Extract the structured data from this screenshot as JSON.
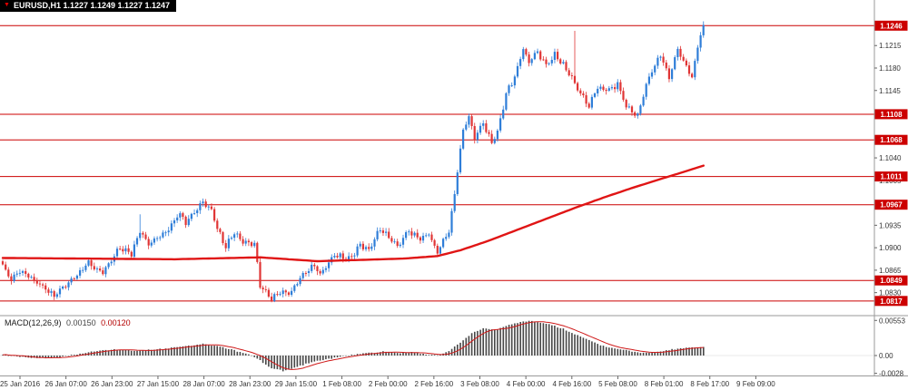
{
  "window": {
    "title": "EURUSD,H1 1.1227 1.1249 1.1227 1.1247"
  },
  "colors": {
    "bull": "#2f7ed8",
    "bear": "#e03535",
    "ma_line": "#e01515",
    "level_line": "#cc0000",
    "hist": "#474747",
    "signal": "#cf1a1a",
    "axis_text": "#333333",
    "panel_border": "#9a9a9a"
  },
  "chart_data": {
    "type": "candlestick",
    "symbol": "EURUSD",
    "timeframe": "H1",
    "last_quote": {
      "open": "1.1227",
      "high": "1.1249",
      "low": "1.1227",
      "close": "1.1247"
    },
    "candle_count": 246,
    "main_panel": {
      "price_min": 1.0797,
      "price_max": 1.1286,
      "axis_ticks": [
        "1.1215",
        "1.1180",
        "1.1145",
        "1.1040",
        "1.1005",
        "1.0935",
        "1.0900",
        "1.0865",
        "1.0830"
      ],
      "level_lines": [
        "1.1246",
        "1.1108",
        "1.1068",
        "1.1011",
        "1.0967",
        "1.0849",
        "1.0817"
      ],
      "price_path": [
        [
          0,
          1.0872
        ],
        [
          3,
          1.085
        ],
        [
          6,
          1.0865
        ],
        [
          12,
          1.0845
        ],
        [
          18,
          1.0825
        ],
        [
          22,
          1.0842
        ],
        [
          30,
          1.0876
        ],
        [
          35,
          1.086
        ],
        [
          41,
          1.09
        ],
        [
          45,
          1.089
        ],
        [
          48,
          1.0928
        ],
        [
          51,
          1.0905
        ],
        [
          57,
          1.0925
        ],
        [
          62,
          1.0955
        ],
        [
          64,
          1.094
        ],
        [
          70,
          1.0972
        ],
        [
          73,
          1.096
        ],
        [
          75,
          1.093
        ],
        [
          78,
          1.0902
        ],
        [
          81,
          1.0925
        ],
        [
          84,
          1.091
        ],
        [
          88,
          1.0905
        ],
        [
          90,
          1.0842
        ],
        [
          94,
          1.0818
        ],
        [
          97,
          1.0833
        ],
        [
          100,
          1.0828
        ],
        [
          105,
          1.0858
        ],
        [
          109,
          1.0872
        ],
        [
          111,
          1.086
        ],
        [
          116,
          1.0888
        ],
        [
          121,
          1.0882
        ],
        [
          125,
          1.0905
        ],
        [
          128,
          1.0896
        ],
        [
          132,
          1.093
        ],
        [
          135,
          1.0916
        ],
        [
          138,
          1.0902
        ],
        [
          142,
          1.0926
        ],
        [
          146,
          1.0912
        ],
        [
          149,
          1.0922
        ],
        [
          152,
          1.0893
        ],
        [
          156,
          1.0925
        ],
        [
          158,
          1.0985
        ],
        [
          161,
          1.1085
        ],
        [
          163,
          1.1105
        ],
        [
          165,
          1.107
        ],
        [
          168,
          1.1095
        ],
        [
          171,
          1.1062
        ],
        [
          173,
          1.108
        ],
        [
          176,
          1.114
        ],
        [
          179,
          1.1165
        ],
        [
          182,
          1.121
        ],
        [
          184,
          1.119
        ],
        [
          187,
          1.1205
        ],
        [
          190,
          1.1185
        ],
        [
          193,
          1.12
        ],
        [
          196,
          1.1185
        ],
        [
          199,
          1.1165
        ],
        [
          202,
          1.114
        ],
        [
          205,
          1.112
        ],
        [
          208,
          1.115
        ],
        [
          212,
          1.1145
        ],
        [
          215,
          1.1155
        ],
        [
          218,
          1.112
        ],
        [
          222,
          1.1105
        ],
        [
          225,
          1.1155
        ],
        [
          227,
          1.1175
        ],
        [
          230,
          1.12
        ],
        [
          233,
          1.1165
        ],
        [
          236,
          1.121
        ],
        [
          238,
          1.119
        ],
        [
          241,
          1.1165
        ],
        [
          243,
          1.1215
        ],
        [
          245,
          1.1247
        ]
      ],
      "wick_spikes": [
        [
          48,
          1.0952
        ],
        [
          200,
          1.1238
        ]
      ],
      "ma_path": [
        [
          0,
          1.0884
        ],
        [
          60,
          1.0882
        ],
        [
          90,
          1.0885
        ],
        [
          110,
          1.0879
        ],
        [
          140,
          1.0883
        ],
        [
          152,
          1.0887
        ],
        [
          160,
          1.0896
        ],
        [
          170,
          1.0911
        ],
        [
          180,
          1.0928
        ],
        [
          190,
          1.0945
        ],
        [
          200,
          1.0962
        ],
        [
          210,
          1.0978
        ],
        [
          220,
          1.0993
        ],
        [
          230,
          1.1007
        ],
        [
          238,
          1.1018
        ],
        [
          245,
          1.1028
        ]
      ]
    },
    "macd_panel": {
      "name": "MACD(12,26,9)",
      "main_value": "0.00150",
      "signal_value": "0.00120",
      "value_min": -0.003,
      "value_max": 0.006,
      "axis_ticks": [
        "0.00553",
        "0.00",
        "-0.0028"
      ],
      "hist_path": [
        [
          0,
          0.0002
        ],
        [
          6,
          -0.0002
        ],
        [
          12,
          -0.0004
        ],
        [
          20,
          -0.0003
        ],
        [
          28,
          0.0004
        ],
        [
          35,
          0.0008
        ],
        [
          41,
          0.001
        ],
        [
          45,
          0.0008
        ],
        [
          51,
          0.0009
        ],
        [
          57,
          0.0011
        ],
        [
          64,
          0.0015
        ],
        [
          70,
          0.0018
        ],
        [
          75,
          0.0015
        ],
        [
          81,
          0.0008
        ],
        [
          86,
          0.0002
        ],
        [
          90,
          -0.0008
        ],
        [
          94,
          -0.002
        ],
        [
          98,
          -0.0024
        ],
        [
          103,
          -0.0018
        ],
        [
          108,
          -0.001
        ],
        [
          113,
          -0.0006
        ],
        [
          118,
          -0.0002
        ],
        [
          122,
          0.0001
        ],
        [
          128,
          0.0004
        ],
        [
          133,
          0.0006
        ],
        [
          138,
          0.0004
        ],
        [
          143,
          0.0005
        ],
        [
          148,
          0.0002
        ],
        [
          152,
          0.0001
        ],
        [
          156,
          0.0007
        ],
        [
          160,
          0.002
        ],
        [
          164,
          0.0035
        ],
        [
          168,
          0.0043
        ],
        [
          172,
          0.004
        ],
        [
          176,
          0.0046
        ],
        [
          180,
          0.0052
        ],
        [
          184,
          0.0055
        ],
        [
          188,
          0.0052
        ],
        [
          192,
          0.0048
        ],
        [
          196,
          0.0042
        ],
        [
          200,
          0.0034
        ],
        [
          204,
          0.0026
        ],
        [
          208,
          0.0018
        ],
        [
          212,
          0.0013
        ],
        [
          216,
          0.001
        ],
        [
          220,
          0.0006
        ],
        [
          224,
          0.0004
        ],
        [
          228,
          0.0006
        ],
        [
          232,
          0.0008
        ],
        [
          236,
          0.0011
        ],
        [
          240,
          0.0013
        ],
        [
          245,
          0.0013
        ]
      ]
    },
    "time_axis": {
      "labels": [
        "25 Jan 2016",
        "26 Jan 07:00",
        "26 Jan 23:00",
        "27 Jan 15:00",
        "28 Jan 07:00",
        "28 Jan 23:00",
        "29 Jan 15:00",
        "1 Feb 08:00",
        "2 Feb 00:00",
        "2 Feb 16:00",
        "3 Feb 08:00",
        "4 Feb 00:00",
        "4 Feb 16:00",
        "5 Feb 08:00",
        "8 Feb 01:00",
        "8 Feb 17:00",
        "9 Feb 09:00"
      ]
    }
  }
}
